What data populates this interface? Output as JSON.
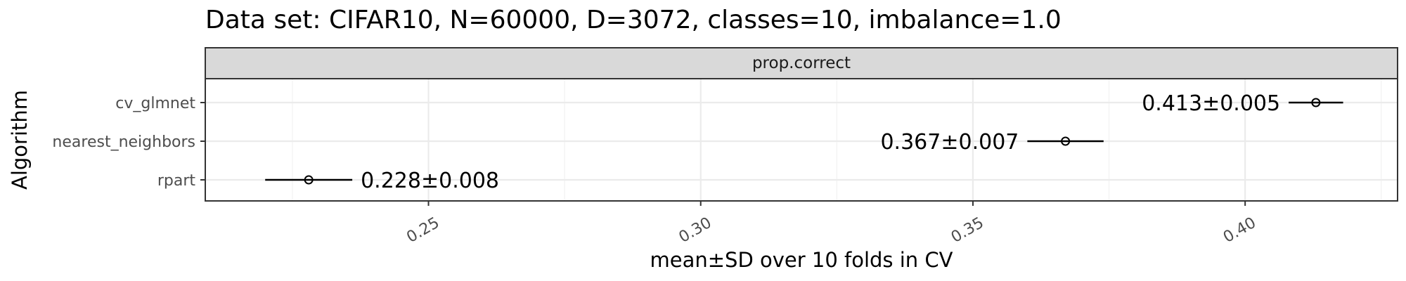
{
  "chart_data": {
    "type": "scatter",
    "title": "Data set: CIFAR10, N=60000, D=3072, classes=10, imbalance=1.0",
    "facet": "prop.correct",
    "xlabel": "mean±SD over 10 folds in CV",
    "ylabel": "Algorithm",
    "xlim": [
      0.209,
      0.428
    ],
    "xticks": [
      0.25,
      0.3,
      0.35,
      0.4
    ],
    "xtick_labels": [
      "0.25",
      "0.30",
      "0.35",
      "0.40"
    ],
    "categories": [
      "cv_glmnet",
      "nearest_neighbors",
      "rpart"
    ],
    "mean": [
      0.413,
      0.367,
      0.228
    ],
    "sd": [
      0.005,
      0.007,
      0.008
    ],
    "labels": [
      "0.413±0.005",
      "0.367±0.007",
      "0.228±0.008"
    ],
    "grid": true,
    "colors": {
      "strip_fill": "#d9d9d9",
      "border": "#333333",
      "grid_major": "#ebebeb",
      "grid_minor": "#f2f2f2",
      "mark": "#000000"
    }
  }
}
